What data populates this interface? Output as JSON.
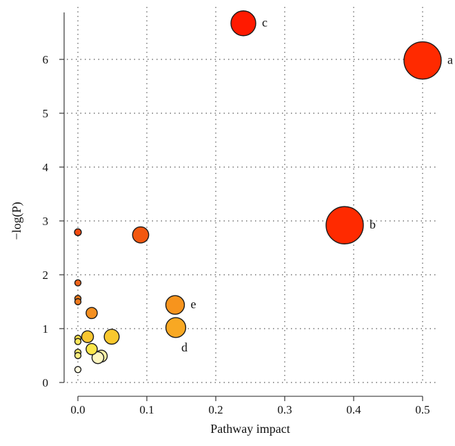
{
  "chart_data": {
    "type": "scatter",
    "title": "",
    "xlabel": "Pathway impact",
    "ylabel": "−log(P)",
    "xlim": [
      0,
      0.5
    ],
    "ylim": [
      0,
      7
    ],
    "xticks": [
      0.0,
      0.1,
      0.2,
      0.3,
      0.4,
      0.5
    ],
    "xtick_labels": [
      "0.0",
      "0.1",
      "0.2",
      "0.3",
      "0.4",
      "0.5"
    ],
    "yticks": [
      0,
      1,
      2,
      3,
      4,
      5,
      6
    ],
    "ytick_labels": [
      "0",
      "1",
      "2",
      "3",
      "4",
      "5",
      "6"
    ],
    "grid": true,
    "encoding": "point colour and size scale with −log(P) and pathway impact",
    "points": [
      {
        "x": 0.5,
        "y": 5.98,
        "label": "a",
        "color": "#ff2a00",
        "size": 3
      },
      {
        "x": 0.24,
        "y": 6.67,
        "label": "c",
        "color": "#ff1a00",
        "size": 2
      },
      {
        "x": 0.387,
        "y": 2.92,
        "label": "b",
        "color": "#ff2a00",
        "size": 3
      },
      {
        "x": 0.091,
        "y": 2.74,
        "label": "",
        "color": "#f25810",
        "size": 1.3
      },
      {
        "x": 0.0,
        "y": 2.79,
        "label": "",
        "color": "#f24a10",
        "size": 0.55
      },
      {
        "x": 0.141,
        "y": 1.44,
        "label": "e",
        "color": "#f7941d",
        "size": 1.5
      },
      {
        "x": 0.142,
        "y": 1.02,
        "label": "d",
        "color": "#f8a823",
        "size": 1.6
      },
      {
        "x": 0.0,
        "y": 1.85,
        "label": "",
        "color": "#f0641a",
        "size": 0.5
      },
      {
        "x": 0.0,
        "y": 1.56,
        "label": "",
        "color": "#f07a1c",
        "size": 0.5
      },
      {
        "x": 0.0,
        "y": 1.5,
        "label": "",
        "color": "#f07a1c",
        "size": 0.5
      },
      {
        "x": 0.02,
        "y": 1.29,
        "label": "",
        "color": "#f48f20",
        "size": 0.9
      },
      {
        "x": 0.049,
        "y": 0.85,
        "label": "",
        "color": "#f9c82e",
        "size": 1.2
      },
      {
        "x": 0.014,
        "y": 0.85,
        "label": "",
        "color": "#f9c630",
        "size": 0.95
      },
      {
        "x": 0.0,
        "y": 0.82,
        "label": "",
        "color": "#fbe14a",
        "size": 0.5
      },
      {
        "x": 0.0,
        "y": 0.76,
        "label": "",
        "color": "#fbe65a",
        "size": 0.5
      },
      {
        "x": 0.02,
        "y": 0.62,
        "label": "",
        "color": "#fbe64a",
        "size": 0.9
      },
      {
        "x": 0.0,
        "y": 0.56,
        "label": "",
        "color": "#fbec6a",
        "size": 0.5
      },
      {
        "x": 0.0,
        "y": 0.5,
        "label": "",
        "color": "#fcef80",
        "size": 0.5
      },
      {
        "x": 0.034,
        "y": 0.49,
        "label": "",
        "color": "#fbf2a6",
        "size": 0.95
      },
      {
        "x": 0.029,
        "y": 0.46,
        "label": "",
        "color": "#fdf6bf",
        "size": 0.95
      },
      {
        "x": 0.0,
        "y": 0.24,
        "label": "",
        "color": "#fffbe0",
        "size": 0.5
      }
    ]
  }
}
